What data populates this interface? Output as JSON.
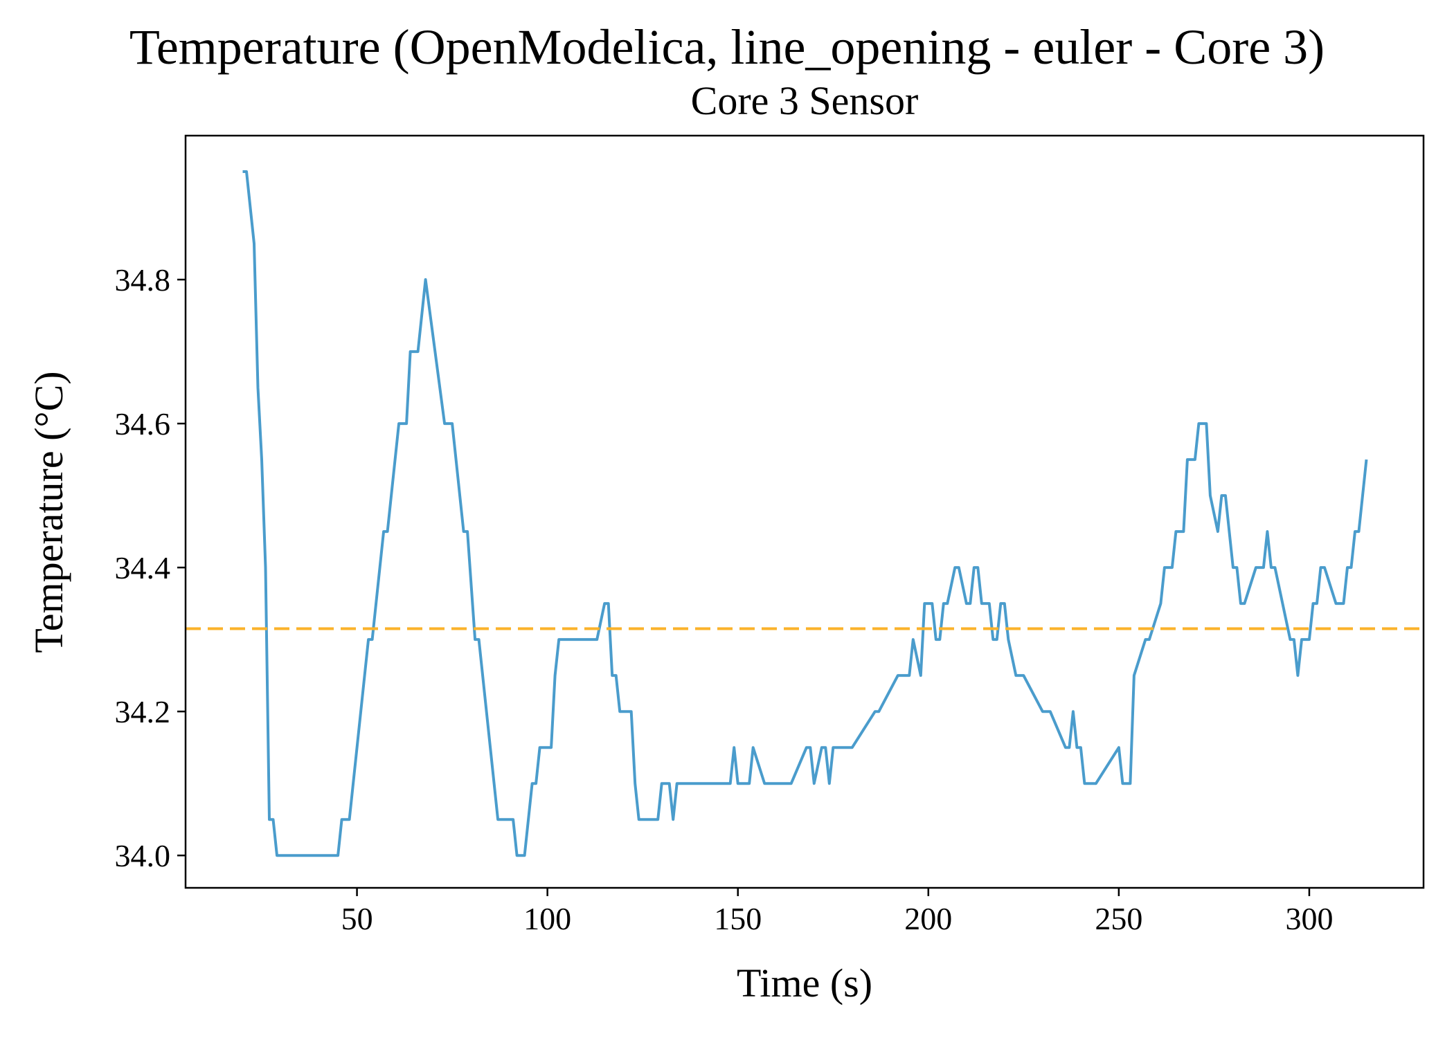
{
  "chart_data": {
    "type": "line",
    "title": "Temperature (OpenModelica, line_opening - euler - Core 3)",
    "subtitle": "Core 3 Sensor",
    "xlabel": "Time (s)",
    "ylabel": "Temperature (°C)",
    "xlim": [
      5,
      330
    ],
    "ylim": [
      33.955,
      35.0
    ],
    "xticks": [
      50,
      100,
      150,
      200,
      250,
      300
    ],
    "yticks": [
      34.0,
      34.2,
      34.4,
      34.6,
      34.8
    ],
    "grid": false,
    "legend": "none",
    "series": [
      {
        "color": "#4a9ccc",
        "style": "solid",
        "x": [
          20,
          21,
          23,
          24,
          25,
          26,
          27,
          28,
          29,
          45,
          46,
          48,
          53,
          54,
          57,
          58,
          61,
          63,
          64,
          66,
          68,
          73,
          75,
          78,
          79,
          81,
          82,
          87,
          91,
          92,
          94,
          96,
          97,
          98,
          101,
          102,
          103,
          113,
          115,
          116,
          117,
          118,
          119,
          122,
          123,
          124,
          129,
          130,
          132,
          133,
          134,
          148,
          149,
          150,
          153,
          154,
          157,
          164,
          168,
          169,
          170,
          172,
          173,
          174,
          175,
          180,
          186,
          187,
          192,
          195,
          196,
          198,
          199,
          201,
          202,
          203,
          204,
          205,
          207,
          208,
          210,
          211,
          212,
          213,
          214,
          216,
          217,
          218,
          219,
          220,
          221,
          223,
          225,
          230,
          232,
          236,
          237,
          238,
          239,
          240,
          241,
          242,
          243,
          244,
          250,
          251,
          253,
          254,
          257,
          258,
          261,
          262,
          264,
          265,
          267,
          268,
          270,
          271,
          273,
          274,
          276,
          277,
          278,
          280,
          281,
          282,
          283,
          286,
          288,
          289,
          290,
          291,
          295,
          296,
          297,
          298,
          300,
          301,
          302,
          303,
          304,
          307,
          309,
          310,
          311,
          312,
          313,
          314,
          315
        ],
        "y": [
          34.95,
          34.95,
          34.85,
          34.65,
          34.55,
          34.4,
          34.05,
          34.05,
          34.0,
          34.0,
          34.05,
          34.05,
          34.3,
          34.3,
          34.45,
          34.45,
          34.6,
          34.6,
          34.7,
          34.7,
          34.8,
          34.6,
          34.6,
          34.45,
          34.45,
          34.3,
          34.3,
          34.05,
          34.05,
          34.0,
          34.0,
          34.1,
          34.1,
          34.15,
          34.15,
          34.25,
          34.3,
          34.3,
          34.35,
          34.35,
          34.25,
          34.25,
          34.2,
          34.2,
          34.1,
          34.05,
          34.05,
          34.1,
          34.1,
          34.05,
          34.1,
          34.1,
          34.15,
          34.1,
          34.1,
          34.15,
          34.1,
          34.1,
          34.15,
          34.15,
          34.1,
          34.15,
          34.15,
          34.1,
          34.15,
          34.15,
          34.2,
          34.2,
          34.25,
          34.25,
          34.3,
          34.25,
          34.35,
          34.35,
          34.3,
          34.3,
          34.35,
          34.35,
          34.4,
          34.4,
          34.35,
          34.35,
          34.4,
          34.4,
          34.35,
          34.35,
          34.3,
          34.3,
          34.35,
          34.35,
          34.3,
          34.25,
          34.25,
          34.2,
          34.2,
          34.15,
          34.15,
          34.2,
          34.15,
          34.15,
          34.1,
          34.1,
          34.1,
          34.1,
          34.15,
          34.1,
          34.1,
          34.25,
          34.3,
          34.3,
          34.35,
          34.4,
          34.4,
          34.45,
          34.45,
          34.55,
          34.55,
          34.6,
          34.6,
          34.5,
          34.45,
          34.5,
          34.5,
          34.4,
          34.4,
          34.35,
          34.35,
          34.4,
          34.4,
          34.45,
          34.4,
          34.4,
          34.3,
          34.3,
          34.25,
          34.3,
          34.3,
          34.35,
          34.35,
          34.4,
          34.4,
          34.35,
          34.35,
          34.4,
          34.4,
          34.45,
          34.45,
          34.5,
          34.55
        ]
      },
      {
        "color": "#fbb22a",
        "style": "dashed",
        "x": [
          5,
          330
        ],
        "y": [
          34.315,
          34.315
        ]
      }
    ]
  }
}
